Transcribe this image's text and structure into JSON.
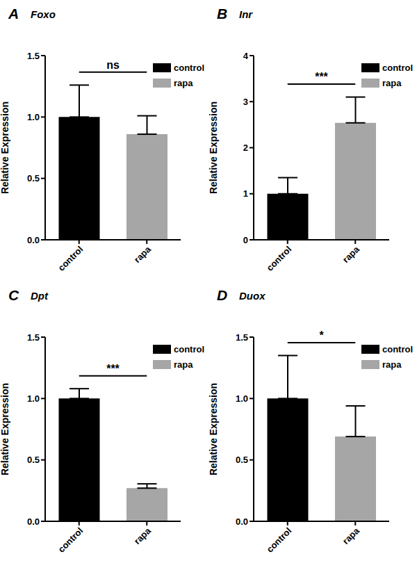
{
  "chart_data": [
    {
      "type": "bar",
      "panel": "A",
      "title": "Foxo",
      "ylabel": "Relative Expression",
      "categories": [
        "control",
        "rapa"
      ],
      "values": [
        1.0,
        0.86
      ],
      "errors": [
        0.26,
        0.15
      ],
      "colors": [
        "#000000",
        "#a6a6a6"
      ],
      "ylim": [
        0,
        1.5
      ],
      "yticks": [
        {
          "value": 0,
          "label": "0.0"
        },
        0.5,
        {
          "value": 1,
          "label": "1.0"
        },
        1.5
      ],
      "annotation": "ns",
      "legend": "top right"
    },
    {
      "type": "bar",
      "panel": "B",
      "title": "Inr",
      "ylabel": "Relative Expression",
      "categories": [
        "control",
        "rapa"
      ],
      "values": [
        1.0,
        2.54
      ],
      "errors": [
        0.35,
        0.56
      ],
      "colors": [
        "#000000",
        "#a6a6a6"
      ],
      "ylim": [
        0,
        4
      ],
      "yticks": [
        0,
        1,
        2,
        3,
        4
      ],
      "annotation": "***",
      "legend": "top right"
    },
    {
      "type": "bar",
      "panel": "C",
      "title": "Dpt",
      "ylabel": "Relative Expression",
      "categories": [
        "control",
        "rapa"
      ],
      "values": [
        1.0,
        0.27
      ],
      "errors": [
        0.08,
        0.035
      ],
      "colors": [
        "#000000",
        "#a6a6a6"
      ],
      "ylim": [
        0,
        1.5
      ],
      "yticks": [
        {
          "value": 0,
          "label": "0.0"
        },
        0.5,
        {
          "value": 1,
          "label": "1.0"
        },
        1.5
      ],
      "annotation": "***",
      "legend": "top right"
    },
    {
      "type": "bar",
      "panel": "D",
      "title": "Duox",
      "ylabel": "Relative Expression",
      "categories": [
        "control",
        "rapa"
      ],
      "values": [
        1.0,
        0.69
      ],
      "errors": [
        0.35,
        0.25
      ],
      "colors": [
        "#000000",
        "#a6a6a6"
      ],
      "ylim": [
        0,
        1.5
      ],
      "yticks": [
        {
          "value": 0,
          "label": "0.0"
        },
        0.5,
        {
          "value": 1,
          "label": "1.0"
        },
        1.5
      ],
      "annotation": "*",
      "legend": "top right"
    }
  ]
}
